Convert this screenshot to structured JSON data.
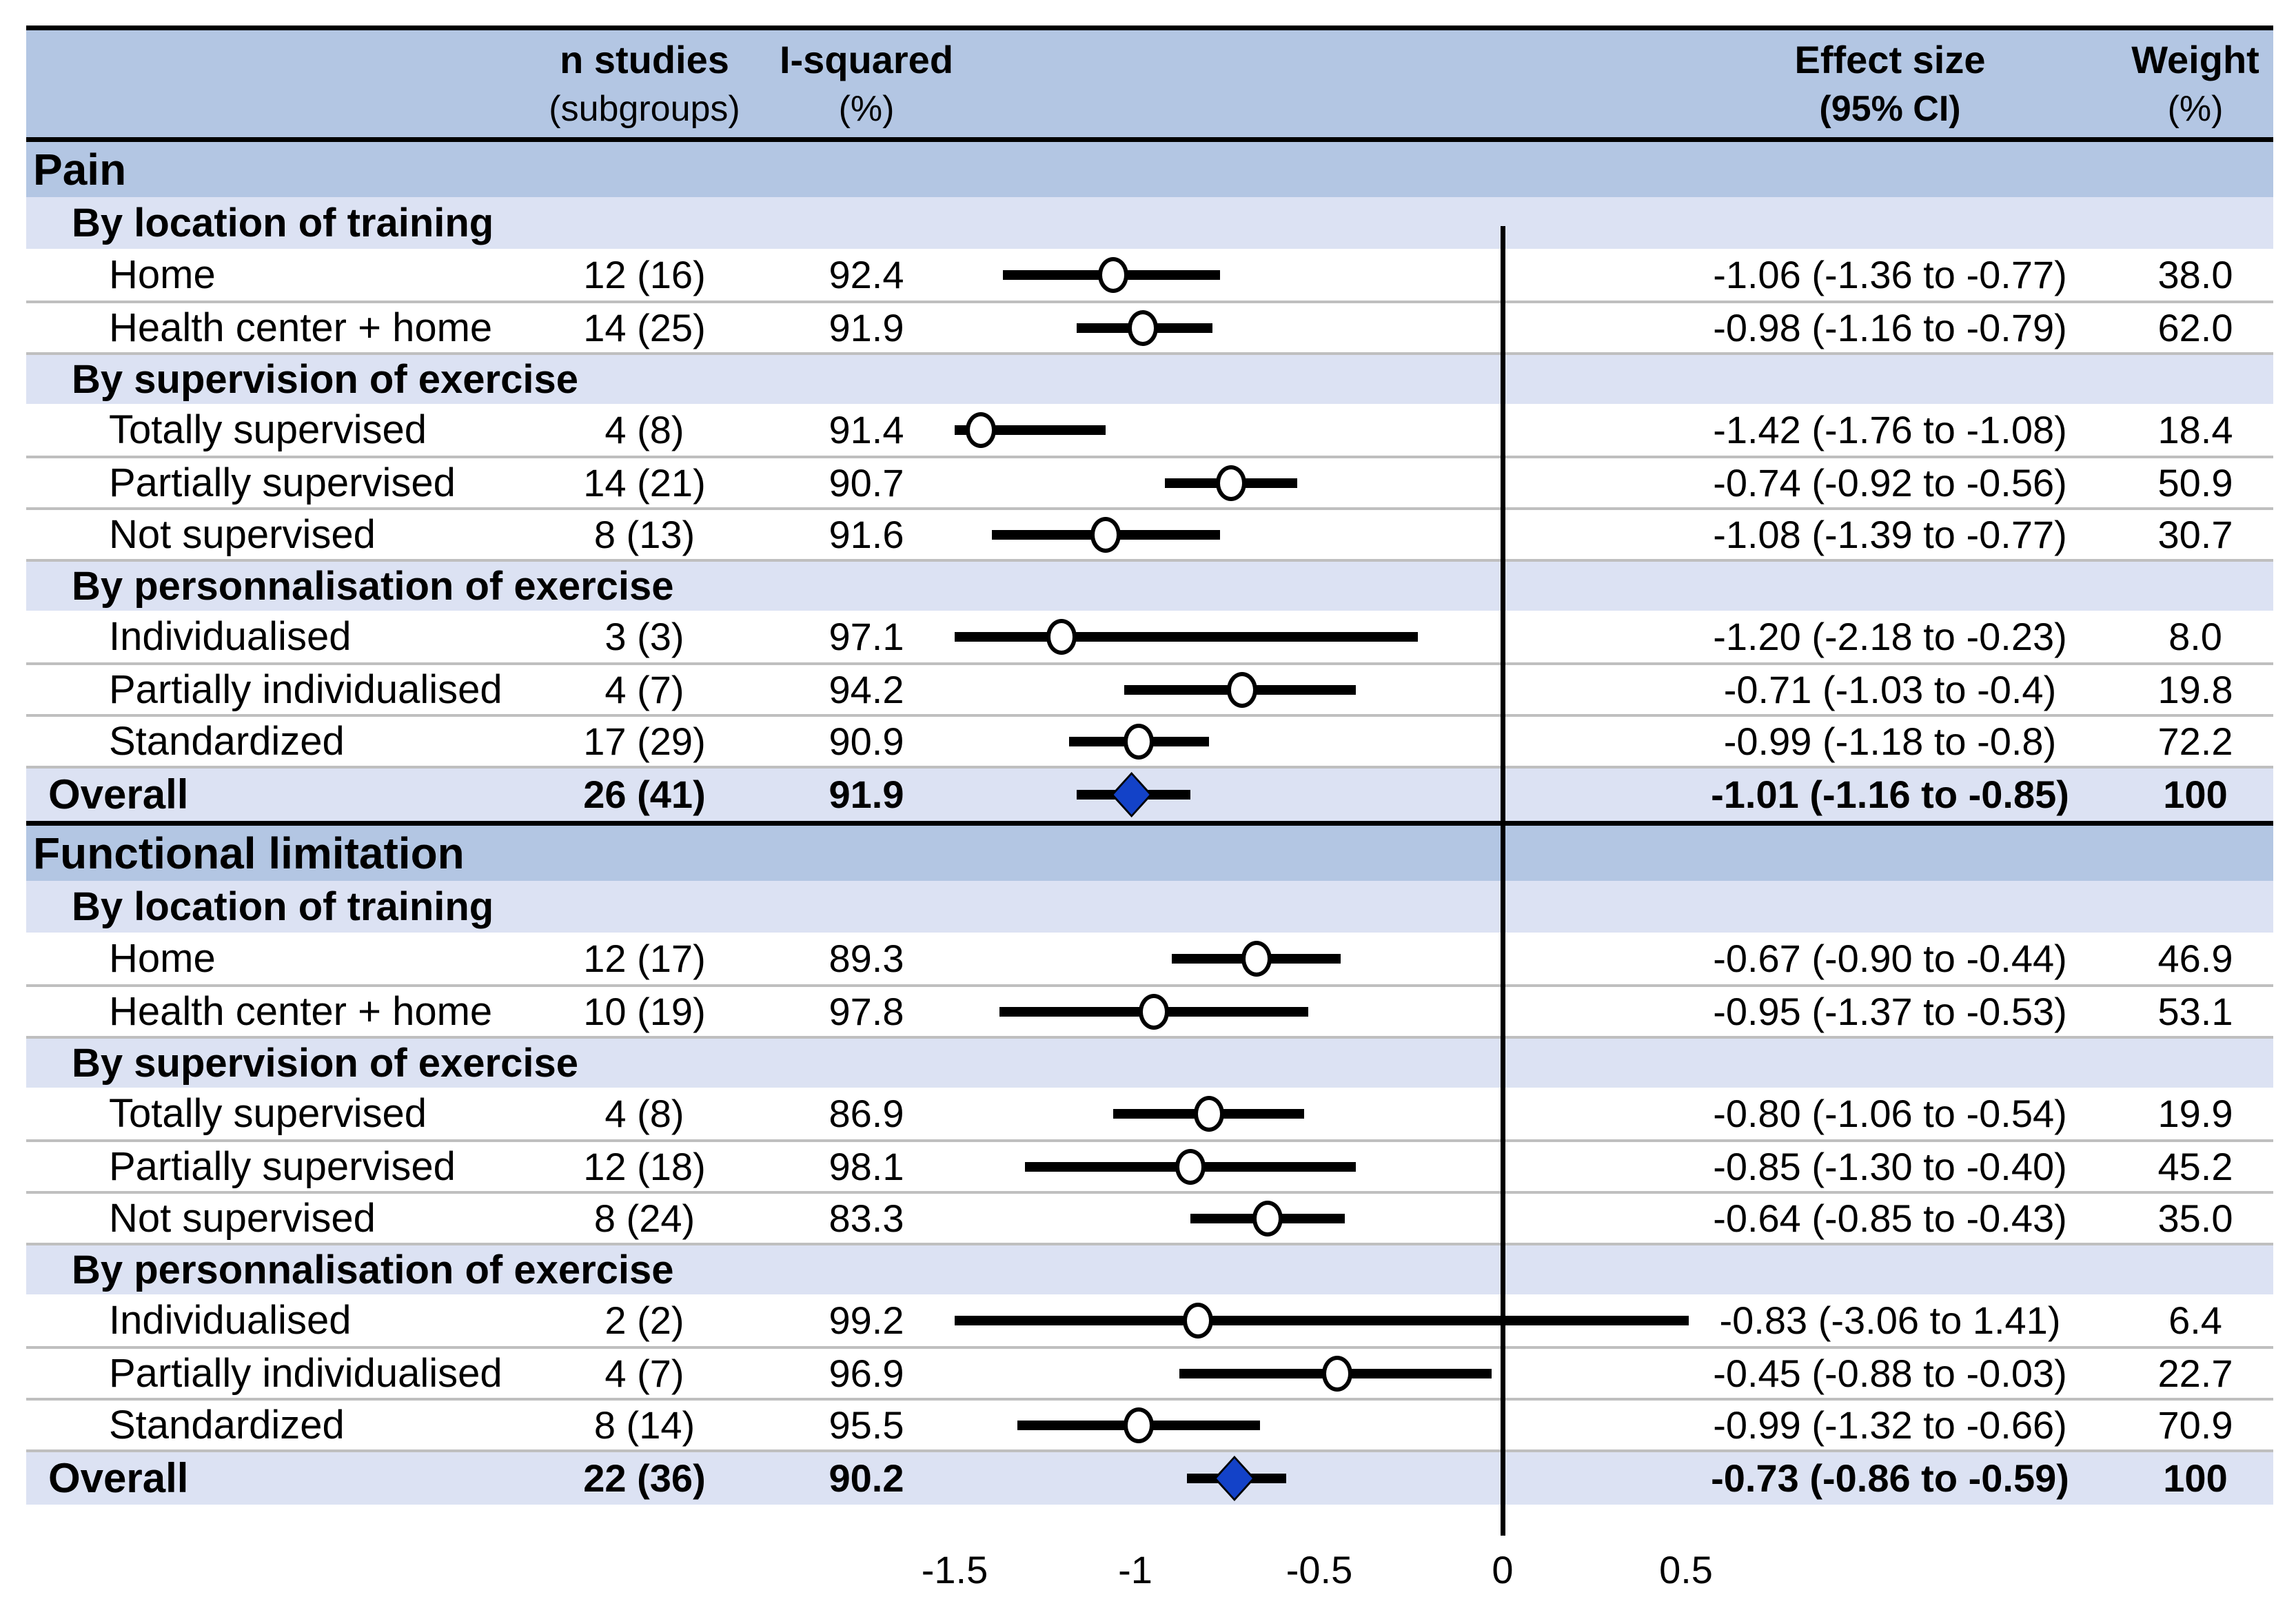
{
  "header": {
    "n_studies": {
      "line1": "n studies",
      "line2": "(subgroups)"
    },
    "i_squared": {
      "line1": "I-squared",
      "line2": "(%)"
    },
    "effect": {
      "line1": "Effect size",
      "line2": "(95% CI)"
    },
    "weight": {
      "line1": "Weight",
      "line2": "(%)"
    }
  },
  "chart_data": {
    "type": "forest",
    "x_axis": {
      "tick_values": [
        -1.5,
        -1,
        -0.5,
        0,
        0.5
      ],
      "tick_labels": [
        "-1.5",
        "-1",
        "-0.5",
        "0",
        "0.5"
      ],
      "clip_range": [
        -1.5,
        0.5
      ],
      "reference_line": 0,
      "grid": false
    },
    "marker_colors": {
      "subgroup_marker": "#FFFFFF",
      "overall_diamond": "#1342C8",
      "ci_line": "#000000"
    },
    "sections": [
      {
        "title": "Pain",
        "groups": [
          {
            "label": "By location of training",
            "rows": [
              {
                "label": "Home",
                "n": "12 (16)",
                "i2": "92.4",
                "est": -1.06,
                "lo": -1.36,
                "hi": -0.77,
                "effect_text": "-1.06 (-1.36 to -0.77)",
                "weight": "38.0"
              },
              {
                "label": "Health center + home",
                "n": "14 (25)",
                "i2": "91.9",
                "est": -0.98,
                "lo": -1.16,
                "hi": -0.79,
                "effect_text": "-0.98 (-1.16 to -0.79)",
                "weight": "62.0"
              }
            ]
          },
          {
            "label": "By supervision of exercise",
            "rows": [
              {
                "label": "Totally supervised",
                "n": "4 (8)",
                "i2": "91.4",
                "est": -1.42,
                "lo": -1.76,
                "hi": -1.08,
                "effect_text": "-1.42 (-1.76 to -1.08)",
                "weight": "18.4"
              },
              {
                "label": "Partially supervised",
                "n": "14 (21)",
                "i2": "90.7",
                "est": -0.74,
                "lo": -0.92,
                "hi": -0.56,
                "effect_text": "-0.74 (-0.92 to -0.56)",
                "weight": "50.9"
              },
              {
                "label": "Not supervised",
                "n": "8 (13)",
                "i2": "91.6",
                "est": -1.08,
                "lo": -1.39,
                "hi": -0.77,
                "effect_text": "-1.08 (-1.39 to -0.77)",
                "weight": "30.7"
              }
            ]
          },
          {
            "label": "By personnalisation of exercise",
            "rows": [
              {
                "label": "Individualised",
                "n": "3 (3)",
                "i2": "97.1",
                "est": -1.2,
                "lo": -2.18,
                "hi": -0.23,
                "effect_text": "-1.20 (-2.18 to -0.23)",
                "weight": "8.0"
              },
              {
                "label": "Partially individualised",
                "n": "4 (7)",
                "i2": "94.2",
                "est": -0.71,
                "lo": -1.03,
                "hi": -0.4,
                "effect_text": "-0.71 (-1.03 to -0.4)",
                "weight": "19.8"
              },
              {
                "label": "Standardized",
                "n": "17 (29)",
                "i2": "90.9",
                "est": -0.99,
                "lo": -1.18,
                "hi": -0.8,
                "effect_text": "-0.99 (-1.18 to -0.8)",
                "weight": "72.2"
              }
            ]
          }
        ],
        "overall": {
          "label": "Overall",
          "n": "26 (41)",
          "i2": "91.9",
          "est": -1.01,
          "lo": -1.16,
          "hi": -0.85,
          "effect_text": "-1.01 (-1.16 to -0.85)",
          "weight": "100"
        }
      },
      {
        "title": "Functional limitation",
        "groups": [
          {
            "label": "By location of training",
            "rows": [
              {
                "label": "Home",
                "n": "12 (17)",
                "i2": "89.3",
                "est": -0.67,
                "lo": -0.9,
                "hi": -0.44,
                "effect_text": "-0.67 (-0.90 to -0.44)",
                "weight": "46.9"
              },
              {
                "label": "Health center + home",
                "n": "10 (19)",
                "i2": "97.8",
                "est": -0.95,
                "lo": -1.37,
                "hi": -0.53,
                "effect_text": "-0.95 (-1.37 to -0.53)",
                "weight": "53.1"
              }
            ]
          },
          {
            "label": "By supervision of exercise",
            "rows": [
              {
                "label": "Totally supervised",
                "n": "4 (8)",
                "i2": "86.9",
                "est": -0.8,
                "lo": -1.06,
                "hi": -0.54,
                "effect_text": "-0.80 (-1.06 to -0.54)",
                "weight": "19.9"
              },
              {
                "label": "Partially supervised",
                "n": "12 (18)",
                "i2": "98.1",
                "est": -0.85,
                "lo": -1.3,
                "hi": -0.4,
                "effect_text": "-0.85 (-1.30 to -0.40)",
                "weight": "45.2"
              },
              {
                "label": "Not supervised",
                "n": "8 (24)",
                "i2": "83.3",
                "est": -0.64,
                "lo": -0.85,
                "hi": -0.43,
                "effect_text": "-0.64 (-0.85 to -0.43)",
                "weight": "35.0"
              }
            ]
          },
          {
            "label": "By personnalisation of exercise",
            "rows": [
              {
                "label": "Individualised",
                "n": "2 (2)",
                "i2": "99.2",
                "est": -0.83,
                "lo": -3.06,
                "hi": 1.41,
                "effect_text": "-0.83 (-3.06 to 1.41)",
                "weight": "6.4"
              },
              {
                "label": "Partially individualised",
                "n": "4 (7)",
                "i2": "96.9",
                "est": -0.45,
                "lo": -0.88,
                "hi": -0.03,
                "effect_text": "-0.45 (-0.88 to -0.03)",
                "weight": "22.7"
              },
              {
                "label": "Standardized",
                "n": "8 (14)",
                "i2": "95.5",
                "est": -0.99,
                "lo": -1.32,
                "hi": -0.66,
                "effect_text": "-0.99 (-1.32 to -0.66)",
                "weight": "70.9"
              }
            ]
          }
        ],
        "overall": {
          "label": "Overall",
          "n": "22 (36)",
          "i2": "90.2",
          "est": -0.73,
          "lo": -0.86,
          "hi": -0.59,
          "effect_text": "-0.73 (-0.86 to -0.59)",
          "weight": "100"
        }
      }
    ]
  },
  "axis": {
    "tick_labels": [
      "-1.5",
      "-1",
      "-0.5",
      "0",
      "0.5"
    ]
  }
}
